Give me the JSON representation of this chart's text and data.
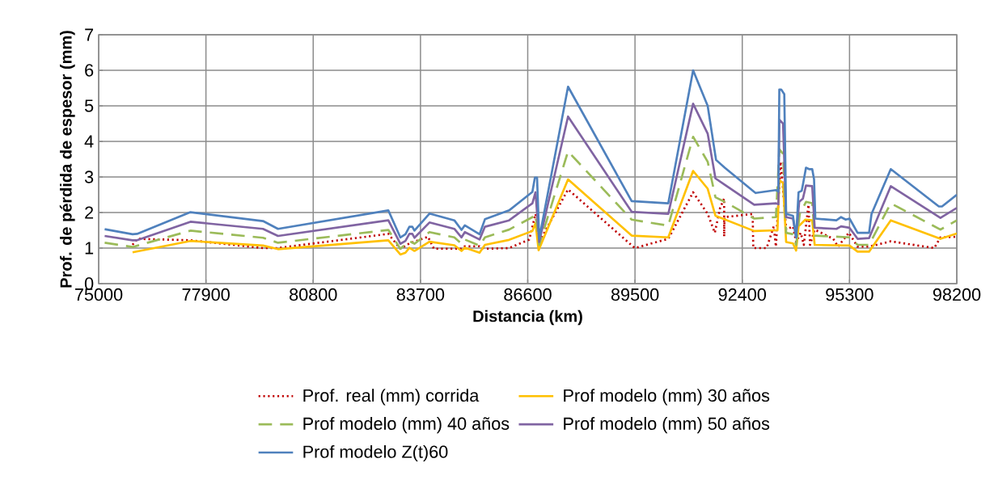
{
  "chart_data": {
    "type": "line",
    "xlabel": "Distancia (km)",
    "ylabel": "Prof. de pérdida de espesor (mm)",
    "xlim": [
      75000,
      98200
    ],
    "ylim": [
      0,
      7
    ],
    "xticks": [
      75000,
      77900,
      80800,
      83700,
      86600,
      89500,
      92400,
      95300,
      98200
    ],
    "yticks": [
      0,
      1,
      2,
      3,
      4,
      5,
      6,
      7
    ],
    "grid": true,
    "legend": "bottom",
    "marker": "none",
    "series": [
      {
        "name": "Prof. real (mm) corrida",
        "color": "#c00000",
        "line_style": "dotted",
        "x": [
          75916,
          76038,
          77481,
          79443,
          79848,
          82831,
          83156,
          83400,
          83902,
          84065,
          84810,
          84900,
          85297,
          85443,
          86097,
          86642,
          86810,
          86910,
          87690,
          89495,
          90400,
          91071,
          91465,
          91658,
          91801,
          91910,
          91910,
          91920,
          92681,
          92698,
          93059,
          93251,
          93310,
          93436,
          93503,
          93586,
          93771,
          93855,
          93981,
          94064,
          94190,
          94232,
          94358,
          94861,
          94987,
          95281,
          95518,
          95828,
          96415,
          97590,
          97758,
          98200
        ],
        "values": [
          1.09,
          1.26,
          1.22,
          1.0,
          1.0,
          1.4,
          0.98,
          1.13,
          1.32,
          0.98,
          0.98,
          1.05,
          1.05,
          0.98,
          1.0,
          1.24,
          1.96,
          1.17,
          2.65,
          1.0,
          1.26,
          2.57,
          1.96,
          1.43,
          2.13,
          2.39,
          1.33,
          1.87,
          1.96,
          1.0,
          1.0,
          1.61,
          1.04,
          3.43,
          2.65,
          1.52,
          1.61,
          1.17,
          1.43,
          1.09,
          2.22,
          1.09,
          1.52,
          1.26,
          1.04,
          1.43,
          1.04,
          1.04,
          1.19,
          1.0,
          1.3,
          1.32
        ]
      },
      {
        "name": "Prof modelo (mm) 30 años",
        "color": "#ffc000",
        "line_style": "solid",
        "x": [
          75916,
          77481,
          79443,
          79848,
          82831,
          83156,
          83294,
          83400,
          83537,
          83943,
          84616,
          84810,
          84900,
          85297,
          85443,
          86097,
          86726,
          86810,
          86894,
          87690,
          89410,
          90400,
          91071,
          91465,
          91675,
          92723,
          93352,
          93402,
          93503,
          93586,
          93771,
          93855,
          93922,
          94106,
          94291,
          94358,
          95300,
          95518,
          95828,
          96415,
          97758,
          98200
        ],
        "values": [
          0.88,
          1.2,
          1.07,
          0.97,
          1.22,
          0.82,
          0.87,
          1.01,
          0.92,
          1.18,
          1.08,
          0.92,
          1.01,
          0.87,
          1.09,
          1.23,
          1.48,
          1.7,
          0.94,
          2.93,
          1.35,
          1.3,
          3.17,
          2.67,
          1.91,
          1.48,
          1.5,
          2.91,
          2.83,
          1.17,
          1.13,
          0.93,
          1.61,
          1.8,
          1.78,
          1.09,
          1.07,
          0.9,
          0.9,
          1.78,
          1.26,
          1.41
        ]
      },
      {
        "name": "Prof modelo (mm) 40 años",
        "color": "#9bbb59",
        "line_style": "dashed",
        "x": [
          75162,
          75916,
          77481,
          79443,
          79848,
          82831,
          83156,
          83400,
          83537,
          83943,
          84616,
          84810,
          84900,
          85297,
          85443,
          86097,
          86726,
          86810,
          86910,
          87690,
          89410,
          90400,
          91071,
          91465,
          91675,
          91926,
          92723,
          93310,
          93402,
          93503,
          93586,
          93771,
          93855,
          93956,
          94123,
          94291,
          94358,
          95300,
          95518,
          95828,
          96415,
          97758,
          98200
        ],
        "values": [
          1.15,
          1.03,
          1.49,
          1.29,
          1.15,
          1.51,
          0.98,
          1.2,
          1.12,
          1.45,
          1.3,
          1.12,
          1.24,
          1.07,
          1.3,
          1.52,
          1.87,
          1.96,
          1.09,
          3.72,
          1.8,
          1.63,
          4.13,
          3.43,
          2.43,
          2.3,
          1.83,
          1.87,
          3.78,
          3.65,
          1.43,
          1.39,
          1.09,
          1.96,
          2.3,
          2.26,
          1.35,
          1.3,
          1.09,
          1.09,
          2.26,
          1.52,
          1.78
        ]
      },
      {
        "name": "Prof modelo (mm) 50 años",
        "color": "#8064a2",
        "line_style": "solid",
        "x": [
          75162,
          75916,
          76038,
          77481,
          79443,
          79848,
          82831,
          83156,
          83294,
          83400,
          83480,
          83537,
          83943,
          84616,
          84810,
          84900,
          85297,
          85443,
          86097,
          86726,
          86810,
          86910,
          87690,
          89410,
          90400,
          91071,
          91465,
          91675,
          91926,
          92723,
          93310,
          93377,
          93402,
          93503,
          93586,
          93771,
          93855,
          93939,
          94039,
          94123,
          94291,
          94358,
          94945,
          95071,
          95300,
          95518,
          95828,
          96415,
          97758,
          98200
        ],
        "values": [
          1.34,
          1.22,
          1.22,
          1.74,
          1.54,
          1.34,
          1.78,
          1.12,
          1.2,
          1.4,
          1.4,
          1.29,
          1.72,
          1.54,
          1.3,
          1.45,
          1.24,
          1.6,
          1.78,
          2.26,
          2.57,
          1.17,
          4.7,
          2.02,
          1.96,
          5.06,
          4.22,
          2.96,
          2.78,
          2.22,
          2.26,
          2.23,
          4.61,
          4.5,
          1.87,
          1.83,
          1.3,
          2.3,
          2.39,
          2.76,
          2.74,
          1.57,
          1.54,
          1.61,
          1.57,
          1.26,
          1.28,
          2.74,
          1.85,
          2.13
        ]
      },
      {
        "name": "Prof modelo Z(t)60",
        "color": "#4f81bd",
        "line_style": "solid",
        "x": [
          75162,
          75916,
          76038,
          77481,
          79443,
          79848,
          82831,
          83156,
          83294,
          83400,
          83480,
          83537,
          83943,
          84616,
          84810,
          84900,
          85297,
          85443,
          86097,
          86726,
          86793,
          86852,
          86910,
          87690,
          89410,
          90400,
          91071,
          91465,
          91691,
          91926,
          92723,
          92765,
          93310,
          93377,
          93402,
          93452,
          93536,
          93586,
          93771,
          93855,
          93922,
          94006,
          94039,
          94123,
          94207,
          94291,
          94341,
          94375,
          94945,
          95071,
          95197,
          95300,
          95518,
          95828,
          95895,
          96415,
          97716,
          97800,
          98200
        ],
        "values": [
          1.53,
          1.39,
          1.4,
          2.01,
          1.76,
          1.54,
          2.06,
          1.3,
          1.39,
          1.6,
          1.6,
          1.49,
          1.97,
          1.78,
          1.51,
          1.64,
          1.39,
          1.81,
          2.06,
          2.58,
          2.98,
          2.98,
          1.26,
          5.54,
          2.32,
          2.26,
          6.0,
          5.0,
          3.48,
          3.26,
          2.58,
          2.55,
          2.63,
          2.59,
          5.46,
          5.46,
          5.33,
          1.96,
          1.91,
          1.3,
          2.57,
          2.61,
          2.78,
          3.26,
          3.22,
          3.22,
          2.93,
          1.83,
          1.78,
          1.87,
          1.8,
          1.83,
          1.43,
          1.43,
          1.96,
          3.22,
          2.17,
          2.17,
          2.5
        ]
      }
    ]
  }
}
